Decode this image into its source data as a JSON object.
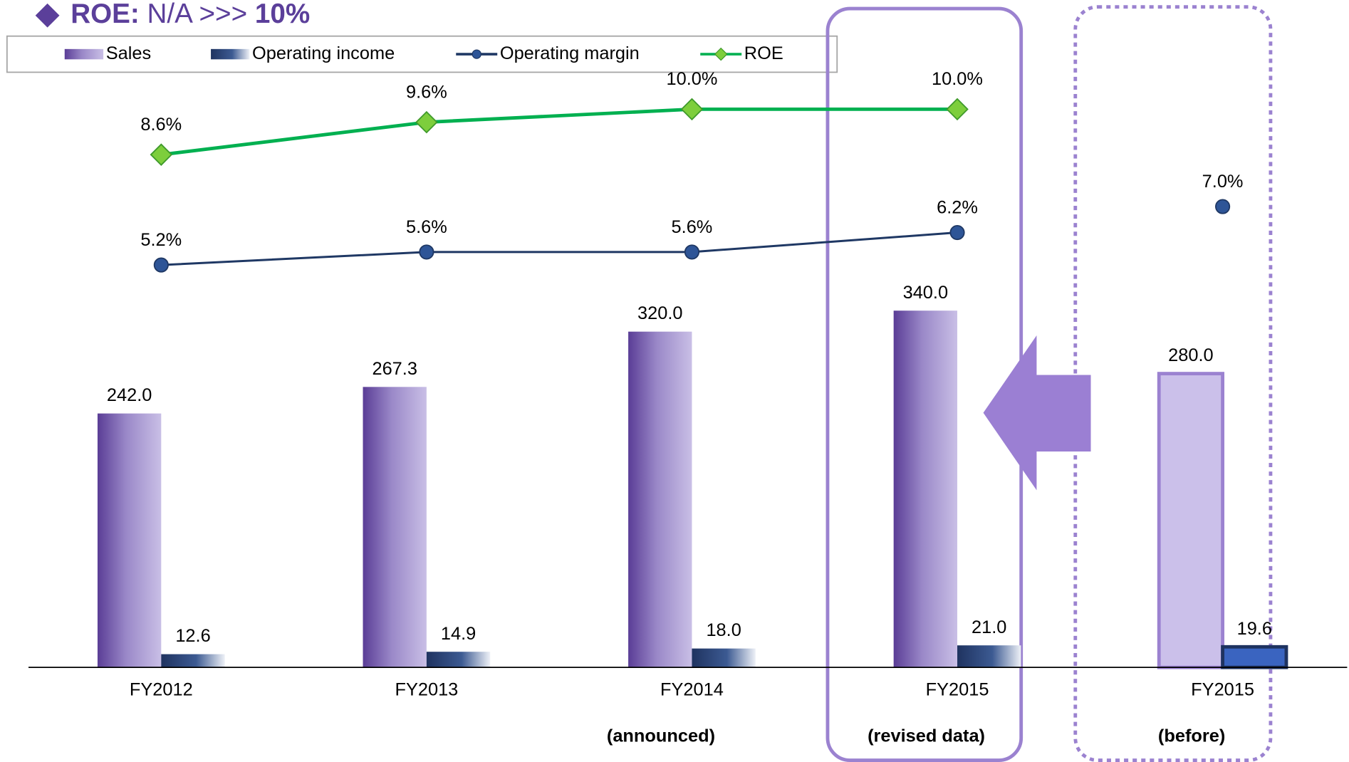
{
  "chart_data": {
    "type": "bar-line",
    "title_parts": [
      "ROE:",
      "N/A >>>",
      "10%"
    ],
    "categories": [
      "FY2012",
      "FY2013",
      "FY2014",
      "FY2015",
      "FY2015"
    ],
    "sublabels": [
      null,
      null,
      "(announced)",
      "(revised data)",
      "(before)"
    ],
    "ylim": [
      0,
      600
    ],
    "y2lim": [
      -7.2,
      12.2
    ],
    "series": [
      {
        "name": "Sales",
        "kind": "bar",
        "color": "#5a3d96",
        "colors": [
          "#5a3d96",
          "#5a3d96",
          "#5a3d96",
          "#5a3d96",
          "#cbc0ea"
        ],
        "values": [
          242.0,
          267.3,
          320.0,
          340.0,
          280.0
        ],
        "value_labels": [
          "242.0",
          "267.3",
          "320.0",
          "340.0",
          "280.0"
        ]
      },
      {
        "name": "Operating income",
        "kind": "bar",
        "color": "#1f3360",
        "colors": [
          "#1f3360",
          "#1f3360",
          "#1f3360",
          "#1f3360",
          "#3a64c0"
        ],
        "values": [
          12.6,
          14.9,
          18.0,
          21.0,
          19.6
        ],
        "value_labels": [
          "12.6",
          "14.9",
          "18.0",
          "21.0",
          "19.6"
        ]
      },
      {
        "name": "Operating margin",
        "kind": "line",
        "axis": "y2",
        "color": "#1f3864",
        "values": [
          5.2,
          5.6,
          5.6,
          6.2,
          7.0
        ],
        "value_labels": [
          "5.2%",
          "5.6%",
          "5.6%",
          "6.2%",
          "7.0%"
        ],
        "segments": [
          [
            0,
            3
          ]
        ]
      },
      {
        "name": "ROE",
        "kind": "line",
        "axis": "y2",
        "color": "#00b050",
        "values": [
          8.6,
          9.6,
          10.0,
          10.0,
          null
        ],
        "value_labels": [
          "8.6%",
          "9.6%",
          "10.0%",
          "10.0%",
          null
        ],
        "segments": [
          [
            0,
            3
          ]
        ]
      }
    ]
  }
}
